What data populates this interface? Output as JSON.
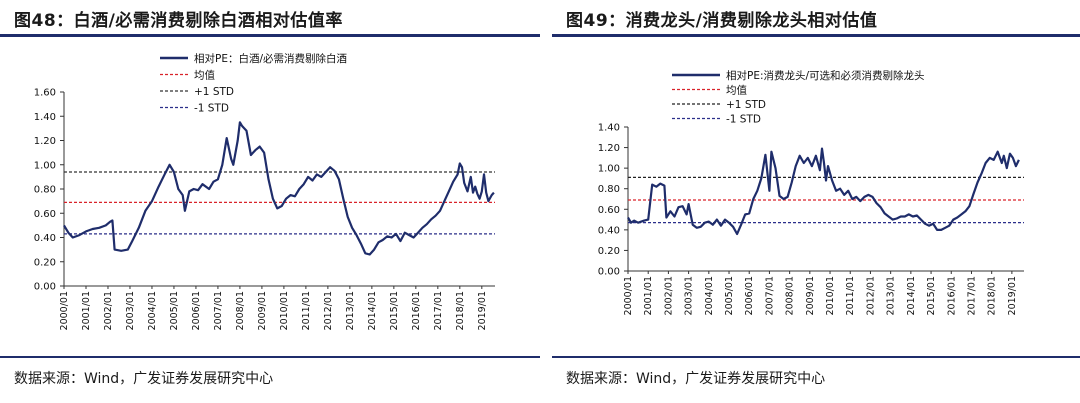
{
  "chart_data": [
    {
      "type": "line",
      "title": "图48：白酒/必需消费剔除白酒相对估值率",
      "xlabel": "",
      "ylabel": "",
      "ylim": [
        0,
        1.6
      ],
      "yticks": [
        "0.00",
        "0.20",
        "0.40",
        "0.60",
        "0.80",
        "1.00",
        "1.20",
        "1.40",
        "1.60"
      ],
      "xticks": [
        "2000/01",
        "2001/01",
        "2002/01",
        "2003/01",
        "2004/01",
        "2005/01",
        "2006/01",
        "2007/01",
        "2008/01",
        "2009/01",
        "2010/01",
        "2011/01",
        "2012/01",
        "2013/01",
        "2014/01",
        "2015/01",
        "2016/01",
        "2017/01",
        "2018/01",
        "2019/01"
      ],
      "legend": {
        "position": "top-left",
        "entries": [
          {
            "label": "相对PE：白酒/必需消费剔除白酒",
            "style": "solid",
            "color": "#1f2d6b"
          },
          {
            "label": "均值",
            "style": "dashed",
            "color": "#d9232a"
          },
          {
            "label": "+1 STD",
            "style": "dashed",
            "color": "#333333"
          },
          {
            "label": "-1 STD",
            "style": "dashed",
            "color": "#2b2f8a"
          }
        ]
      },
      "reference_lines": {
        "mean": 0.69,
        "plus_std": 0.94,
        "minus_std": 0.43
      },
      "series": [
        {
          "color": "#1f2d6b",
          "points": [
            [
              2000.0,
              0.5
            ],
            [
              2000.2,
              0.44
            ],
            [
              2000.4,
              0.4
            ],
            [
              2000.7,
              0.42
            ],
            [
              2001.0,
              0.45
            ],
            [
              2001.3,
              0.47
            ],
            [
              2001.6,
              0.48
            ],
            [
              2001.9,
              0.5
            ],
            [
              2002.1,
              0.53
            ],
            [
              2002.2,
              0.54
            ],
            [
              2002.3,
              0.3
            ],
            [
              2002.6,
              0.29
            ],
            [
              2002.9,
              0.3
            ],
            [
              2003.1,
              0.37
            ],
            [
              2003.4,
              0.48
            ],
            [
              2003.7,
              0.62
            ],
            [
              2004.0,
              0.7
            ],
            [
              2004.3,
              0.82
            ],
            [
              2004.6,
              0.93
            ],
            [
              2004.8,
              1.0
            ],
            [
              2005.0,
              0.94
            ],
            [
              2005.2,
              0.8
            ],
            [
              2005.4,
              0.75
            ],
            [
              2005.5,
              0.62
            ],
            [
              2005.7,
              0.78
            ],
            [
              2005.9,
              0.8
            ],
            [
              2006.1,
              0.79
            ],
            [
              2006.3,
              0.84
            ],
            [
              2006.6,
              0.8
            ],
            [
              2006.8,
              0.86
            ],
            [
              2007.0,
              0.88
            ],
            [
              2007.2,
              1.0
            ],
            [
              2007.4,
              1.22
            ],
            [
              2007.6,
              1.05
            ],
            [
              2007.7,
              1.0
            ],
            [
              2007.9,
              1.2
            ],
            [
              2008.0,
              1.35
            ],
            [
              2008.1,
              1.32
            ],
            [
              2008.3,
              1.28
            ],
            [
              2008.5,
              1.08
            ],
            [
              2008.7,
              1.12
            ],
            [
              2008.9,
              1.15
            ],
            [
              2009.1,
              1.1
            ],
            [
              2009.3,
              0.88
            ],
            [
              2009.5,
              0.72
            ],
            [
              2009.7,
              0.64
            ],
            [
              2009.9,
              0.66
            ],
            [
              2010.1,
              0.72
            ],
            [
              2010.3,
              0.75
            ],
            [
              2010.5,
              0.74
            ],
            [
              2010.7,
              0.8
            ],
            [
              2010.9,
              0.84
            ],
            [
              2011.1,
              0.9
            ],
            [
              2011.3,
              0.87
            ],
            [
              2011.5,
              0.92
            ],
            [
              2011.7,
              0.9
            ],
            [
              2011.9,
              0.94
            ],
            [
              2012.1,
              0.98
            ],
            [
              2012.3,
              0.95
            ],
            [
              2012.5,
              0.88
            ],
            [
              2012.7,
              0.72
            ],
            [
              2012.9,
              0.57
            ],
            [
              2013.1,
              0.48
            ],
            [
              2013.3,
              0.42
            ],
            [
              2013.5,
              0.35
            ],
            [
              2013.7,
              0.27
            ],
            [
              2013.9,
              0.26
            ],
            [
              2014.1,
              0.3
            ],
            [
              2014.3,
              0.36
            ],
            [
              2014.5,
              0.38
            ],
            [
              2014.7,
              0.41
            ],
            [
              2014.9,
              0.4
            ],
            [
              2015.1,
              0.43
            ],
            [
              2015.3,
              0.37
            ],
            [
              2015.5,
              0.44
            ],
            [
              2015.7,
              0.42
            ],
            [
              2015.9,
              0.4
            ],
            [
              2016.1,
              0.44
            ],
            [
              2016.3,
              0.48
            ],
            [
              2016.5,
              0.51
            ],
            [
              2016.7,
              0.55
            ],
            [
              2016.9,
              0.58
            ],
            [
              2017.1,
              0.62
            ],
            [
              2017.3,
              0.7
            ],
            [
              2017.5,
              0.78
            ],
            [
              2017.7,
              0.86
            ],
            [
              2017.9,
              0.92
            ],
            [
              2018.0,
              1.01
            ],
            [
              2018.1,
              0.98
            ],
            [
              2018.2,
              0.85
            ],
            [
              2018.35,
              0.78
            ],
            [
              2018.5,
              0.9
            ],
            [
              2018.6,
              0.77
            ],
            [
              2018.7,
              0.82
            ],
            [
              2018.8,
              0.76
            ],
            [
              2018.9,
              0.72
            ],
            [
              2019.0,
              0.78
            ],
            [
              2019.1,
              0.92
            ],
            [
              2019.2,
              0.77
            ],
            [
              2019.3,
              0.7
            ],
            [
              2019.45,
              0.75
            ],
            [
              2019.55,
              0.77
            ]
          ]
        }
      ]
    },
    {
      "type": "line",
      "title": "图49：消费龙头/消费剔除龙头相对估值",
      "xlabel": "",
      "ylabel": "",
      "ylim": [
        0,
        1.4
      ],
      "yticks": [
        "0.00",
        "0.20",
        "0.40",
        "0.60",
        "0.80",
        "1.00",
        "1.20",
        "1.40"
      ],
      "xticks": [
        "2000/01",
        "2001/01",
        "2002/01",
        "2003/01",
        "2004/01",
        "2005/01",
        "2006/01",
        "2007/01",
        "2008/01",
        "2009/01",
        "2010/01",
        "2011/01",
        "2012/01",
        "2013/01",
        "2014/01",
        "2015/01",
        "2016/01",
        "2017/01",
        "2018/01",
        "2019/01"
      ],
      "legend": {
        "position": "top-left",
        "entries": [
          {
            "label": "相对PE:消费龙头/可选和必须消费剔除龙头",
            "style": "solid",
            "color": "#1f2d6b"
          },
          {
            "label": "均值",
            "style": "dashed",
            "color": "#d9232a"
          },
          {
            "label": "+1 STD",
            "style": "dashed",
            "color": "#222222"
          },
          {
            "label": "-1 STD",
            "style": "dashed",
            "color": "#2b2f8a"
          }
        ]
      },
      "reference_lines": {
        "mean": 0.69,
        "plus_std": 0.91,
        "minus_std": 0.47
      },
      "series": [
        {
          "color": "#1f2d6b",
          "points": [
            [
              2000.0,
              0.52
            ],
            [
              2000.15,
              0.47
            ],
            [
              2000.3,
              0.49
            ],
            [
              2000.5,
              0.47
            ],
            [
              2000.8,
              0.49
            ],
            [
              2001.0,
              0.5
            ],
            [
              2001.2,
              0.84
            ],
            [
              2001.4,
              0.82
            ],
            [
              2001.6,
              0.85
            ],
            [
              2001.8,
              0.83
            ],
            [
              2001.9,
              0.52
            ],
            [
              2002.1,
              0.58
            ],
            [
              2002.3,
              0.53
            ],
            [
              2002.5,
              0.62
            ],
            [
              2002.7,
              0.63
            ],
            [
              2002.9,
              0.55
            ],
            [
              2003.0,
              0.65
            ],
            [
              2003.2,
              0.45
            ],
            [
              2003.4,
              0.42
            ],
            [
              2003.6,
              0.43
            ],
            [
              2003.8,
              0.47
            ],
            [
              2004.0,
              0.48
            ],
            [
              2004.2,
              0.45
            ],
            [
              2004.4,
              0.5
            ],
            [
              2004.6,
              0.44
            ],
            [
              2004.8,
              0.5
            ],
            [
              2005.0,
              0.47
            ],
            [
              2005.2,
              0.43
            ],
            [
              2005.4,
              0.36
            ],
            [
              2005.6,
              0.45
            ],
            [
              2005.8,
              0.55
            ],
            [
              2006.0,
              0.56
            ],
            [
              2006.2,
              0.7
            ],
            [
              2006.4,
              0.78
            ],
            [
              2006.6,
              0.9
            ],
            [
              2006.8,
              1.13
            ],
            [
              2007.0,
              0.78
            ],
            [
              2007.1,
              1.16
            ],
            [
              2007.3,
              1.0
            ],
            [
              2007.5,
              0.73
            ],
            [
              2007.7,
              0.7
            ],
            [
              2007.9,
              0.72
            ],
            [
              2008.1,
              0.86
            ],
            [
              2008.3,
              1.02
            ],
            [
              2008.5,
              1.12
            ],
            [
              2008.7,
              1.05
            ],
            [
              2008.9,
              1.1
            ],
            [
              2009.1,
              1.02
            ],
            [
              2009.3,
              1.12
            ],
            [
              2009.5,
              0.98
            ],
            [
              2009.6,
              1.19
            ],
            [
              2009.7,
              1.05
            ],
            [
              2009.8,
              0.88
            ],
            [
              2009.9,
              1.02
            ],
            [
              2010.1,
              0.88
            ],
            [
              2010.3,
              0.78
            ],
            [
              2010.5,
              0.8
            ],
            [
              2010.7,
              0.74
            ],
            [
              2010.9,
              0.78
            ],
            [
              2011.1,
              0.7
            ],
            [
              2011.3,
              0.72
            ],
            [
              2011.5,
              0.68
            ],
            [
              2011.7,
              0.72
            ],
            [
              2011.9,
              0.74
            ],
            [
              2012.1,
              0.72
            ],
            [
              2012.3,
              0.66
            ],
            [
              2012.5,
              0.62
            ],
            [
              2012.7,
              0.56
            ],
            [
              2012.9,
              0.53
            ],
            [
              2013.1,
              0.5
            ],
            [
              2013.3,
              0.51
            ],
            [
              2013.5,
              0.53
            ],
            [
              2013.7,
              0.53
            ],
            [
              2013.9,
              0.55
            ],
            [
              2014.1,
              0.53
            ],
            [
              2014.3,
              0.54
            ],
            [
              2014.5,
              0.5
            ],
            [
              2014.7,
              0.46
            ],
            [
              2014.9,
              0.44
            ],
            [
              2015.1,
              0.46
            ],
            [
              2015.3,
              0.4
            ],
            [
              2015.5,
              0.4
            ],
            [
              2015.7,
              0.42
            ],
            [
              2015.9,
              0.44
            ],
            [
              2016.1,
              0.5
            ],
            [
              2016.3,
              0.52
            ],
            [
              2016.5,
              0.55
            ],
            [
              2016.7,
              0.58
            ],
            [
              2016.9,
              0.63
            ],
            [
              2017.1,
              0.75
            ],
            [
              2017.3,
              0.86
            ],
            [
              2017.5,
              0.95
            ],
            [
              2017.7,
              1.05
            ],
            [
              2017.9,
              1.1
            ],
            [
              2018.1,
              1.08
            ],
            [
              2018.3,
              1.16
            ],
            [
              2018.5,
              1.05
            ],
            [
              2018.6,
              1.12
            ],
            [
              2018.75,
              1.0
            ],
            [
              2018.9,
              1.14
            ],
            [
              2019.05,
              1.1
            ],
            [
              2019.2,
              1.02
            ],
            [
              2019.35,
              1.08
            ]
          ]
        }
      ]
    }
  ],
  "source": "数据来源：Wind，广发证券发展研究中心",
  "colors": {
    "accent": "#1f2d6b",
    "mean": "#d9232a"
  }
}
